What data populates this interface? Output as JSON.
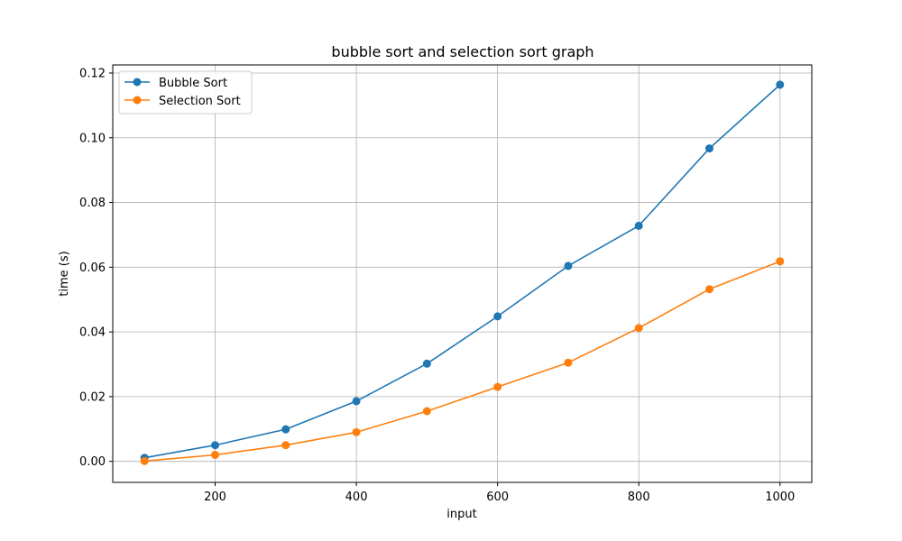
{
  "chart_data": {
    "type": "line",
    "title": "bubble sort and selection sort graph",
    "xlabel": "input",
    "ylabel": "time (s)",
    "x": [
      100,
      200,
      300,
      400,
      500,
      600,
      700,
      800,
      900,
      1000
    ],
    "xlim": [
      55,
      1045
    ],
    "ylim": [
      -0.0065,
      0.1225
    ],
    "xticks": [
      200,
      400,
      600,
      800,
      1000
    ],
    "xtick_labels": [
      "200",
      "400",
      "600",
      "800",
      "1000"
    ],
    "yticks": [
      0.0,
      0.02,
      0.04,
      0.06,
      0.08,
      0.1,
      0.12
    ],
    "ytick_labels": [
      "0.00",
      "0.02",
      "0.04",
      "0.06",
      "0.08",
      "0.10",
      "0.12"
    ],
    "grid": true,
    "legend_position": "top-left",
    "series": [
      {
        "name": "Bubble Sort",
        "color": "#1f77b4",
        "marker": "circle",
        "values": [
          0.0011,
          0.005,
          0.0099,
          0.0186,
          0.0302,
          0.0448,
          0.0604,
          0.0728,
          0.0967,
          0.1164
        ]
      },
      {
        "name": "Selection Sort",
        "color": "#ff7f0e",
        "marker": "circle",
        "values": [
          0.0001,
          0.002,
          0.005,
          0.009,
          0.0155,
          0.023,
          0.0305,
          0.0412,
          0.0532,
          0.0618
        ]
      }
    ]
  }
}
